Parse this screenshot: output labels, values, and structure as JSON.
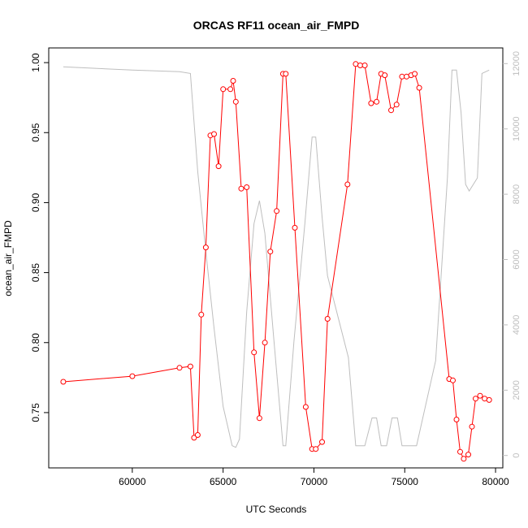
{
  "chart_data": {
    "type": "line",
    "title": "ORCAS RF11 ocean_air_FMPD",
    "xlabel": "UTC Seconds",
    "ylabel": "ocean_air_FMPD",
    "xlim": [
      55400,
      80400
    ],
    "ylim": [
      0.7105,
      1.0105
    ],
    "y2lim": [
      -380,
      12480
    ],
    "x_ticks": [
      60000,
      65000,
      70000,
      75000,
      80000
    ],
    "x_tick_labels": [
      "60000",
      "65000",
      "70000",
      "75000",
      "80000"
    ],
    "y_ticks": [
      0.75,
      0.8,
      0.85,
      0.9,
      0.95,
      1.0
    ],
    "y_tick_labels": [
      "0.75",
      "0.80",
      "0.85",
      "0.90",
      "0.95",
      "1.00"
    ],
    "y2_ticks": [
      0,
      2000,
      4000,
      6000,
      8000,
      10000,
      12000
    ],
    "y2_tick_labels": [
      "0",
      "2000",
      "4000",
      "6000",
      "8000",
      "10000",
      "12000"
    ],
    "grid": false,
    "series": [
      {
        "color": "#ff0000",
        "marker": "open-circle",
        "axis": "left",
        "x": [
          56200,
          60000,
          62600,
          63200,
          63400,
          63600,
          63800,
          64050,
          64300,
          64500,
          64750,
          65000,
          65400,
          65550,
          65700,
          66000,
          66300,
          66700,
          67000,
          67300,
          67600,
          67950,
          68300,
          68450,
          68950,
          69550,
          69900,
          70100,
          70450,
          70750,
          71850,
          72300,
          72550,
          72800,
          73150,
          73450,
          73700,
          73900,
          74250,
          74550,
          74850,
          75100,
          75350,
          75550,
          75800,
          77450,
          77650,
          77850,
          78050,
          78250,
          78500,
          78700,
          78900,
          79150,
          79400,
          79650
        ],
        "y": [
          0.772,
          0.776,
          0.782,
          0.783,
          0.732,
          0.734,
          0.82,
          0.868,
          0.948,
          0.949,
          0.926,
          0.981,
          0.981,
          0.987,
          0.972,
          0.91,
          0.911,
          0.793,
          0.746,
          0.8,
          0.865,
          0.894,
          0.992,
          0.992,
          0.882,
          0.754,
          0.724,
          0.724,
          0.729,
          0.817,
          0.913,
          0.999,
          0.998,
          0.998,
          0.971,
          0.972,
          0.992,
          0.991,
          0.966,
          0.97,
          0.99,
          0.99,
          0.991,
          0.992,
          0.982,
          0.774,
          0.773,
          0.745,
          0.722,
          0.717,
          0.72,
          0.74,
          0.76,
          0.762,
          0.76,
          0.759
        ]
      },
      {
        "color": "#bebebe",
        "marker": "none",
        "axis": "right",
        "x": [
          56200,
          60000,
          62600,
          63200,
          63600,
          64000,
          64500,
          65000,
          65500,
          65700,
          65900,
          66300,
          66700,
          67000,
          67300,
          67800,
          68300,
          68450,
          68900,
          69500,
          69900,
          70100,
          70450,
          70750,
          71900,
          72300,
          72800,
          73200,
          73450,
          73700,
          74000,
          74300,
          74600,
          74850,
          75350,
          75650,
          76700,
          77350,
          77600,
          77850,
          78100,
          78350,
          78550,
          79000,
          79250,
          79650
        ],
        "y": [
          11900,
          11800,
          11750,
          11700,
          8700,
          6500,
          3900,
          1500,
          300,
          250,
          500,
          4400,
          7100,
          7800,
          6800,
          3500,
          300,
          300,
          3500,
          7100,
          9750,
          9750,
          7300,
          5500,
          3000,
          300,
          300,
          1150,
          1150,
          300,
          300,
          1150,
          1150,
          300,
          300,
          300,
          2900,
          8500,
          11800,
          11800,
          10500,
          8300,
          8100,
          8500,
          11700,
          11800
        ]
      }
    ]
  }
}
